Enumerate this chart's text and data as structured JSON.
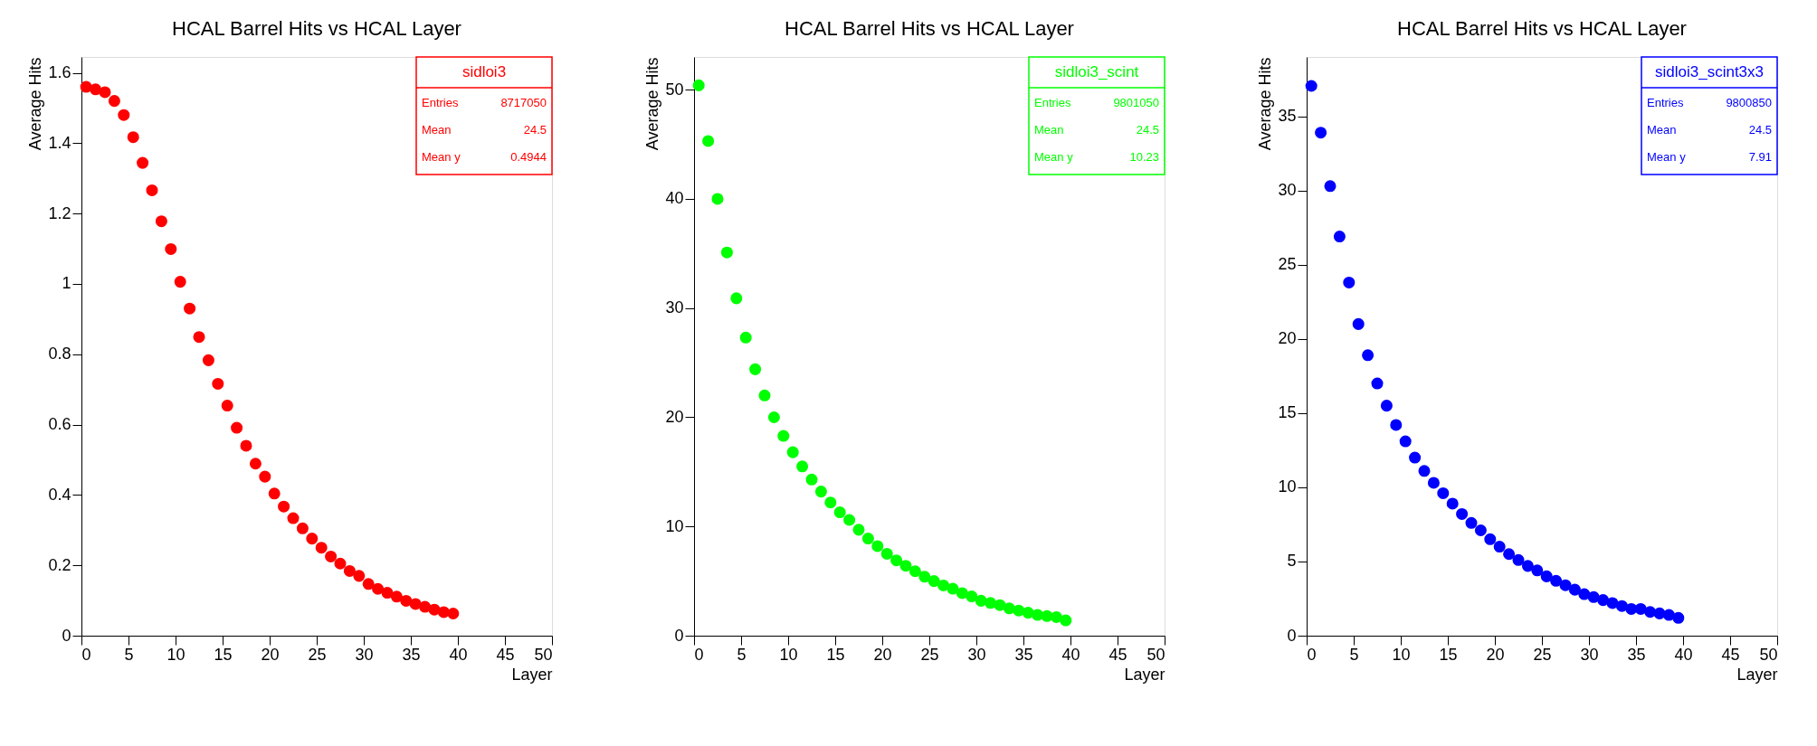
{
  "chart_data": [
    {
      "type": "scatter",
      "title": "HCAL Barrel Hits vs HCAL Layer",
      "xlabel": "Layer",
      "ylabel": "Average Hits",
      "marker": "circle",
      "grid": false,
      "legend": "top right",
      "x": [
        0.5,
        1.5,
        2.5,
        3.5,
        4.5,
        5.5,
        6.5,
        7.5,
        8.5,
        9.5,
        10.5,
        11.5,
        12.5,
        13.5,
        14.5,
        15.5,
        16.5,
        17.5,
        18.5,
        19.5,
        20.5,
        21.5,
        22.5,
        23.5,
        24.5,
        25.5,
        26.5,
        27.5,
        28.5,
        29.5,
        30.5,
        31.5,
        32.5,
        33.5,
        34.5,
        35.5,
        36.5,
        37.5,
        38.5,
        39.5
      ],
      "series": [
        {
          "name": "sidloi3",
          "color": "#ff0000",
          "values": [
            1.56,
            1.553,
            1.545,
            1.52,
            1.48,
            1.417,
            1.344,
            1.266,
            1.178,
            1.099,
            1.006,
            0.93,
            0.849,
            0.783,
            0.716,
            0.654,
            0.591,
            0.54,
            0.489,
            0.452,
            0.404,
            0.367,
            0.334,
            0.305,
            0.276,
            0.25,
            0.225,
            0.205,
            0.184,
            0.17,
            0.147,
            0.133,
            0.122,
            0.111,
            0.099,
            0.09,
            0.082,
            0.074,
            0.067,
            0.063
          ]
        }
      ],
      "annotations": [
        "Entries",
        "8717050",
        "Mean",
        "24.5",
        "Mean y",
        "0.4944"
      ],
      "xlim": [
        0,
        50
      ],
      "xticks": [
        0,
        5,
        10,
        15,
        20,
        25,
        30,
        35,
        40,
        45,
        50
      ],
      "ylim": [
        0,
        1.645
      ],
      "yticks": [
        0,
        0.2,
        0.4,
        0.6,
        0.8,
        1,
        1.2,
        1.4,
        1.6
      ]
    },
    {
      "type": "scatter",
      "title": "HCAL Barrel Hits vs HCAL Layer",
      "xlabel": "Layer",
      "ylabel": "Average Hits",
      "marker": "circle",
      "grid": false,
      "legend": "top right",
      "x": [
        0.5,
        1.5,
        2.5,
        3.5,
        4.5,
        5.5,
        6.5,
        7.5,
        8.5,
        9.5,
        10.5,
        11.5,
        12.5,
        13.5,
        14.5,
        15.5,
        16.5,
        17.5,
        18.5,
        19.5,
        20.5,
        21.5,
        22.5,
        23.5,
        24.5,
        25.5,
        26.5,
        27.5,
        28.5,
        29.5,
        30.5,
        31.5,
        32.5,
        33.5,
        34.5,
        35.5,
        36.5,
        37.5,
        38.5,
        39.5
      ],
      "series": [
        {
          "name": "sidloi3_scint",
          "color": "#00ff00",
          "values": [
            50.4,
            45.3,
            40.0,
            35.1,
            30.9,
            27.3,
            24.4,
            22.0,
            20.0,
            18.3,
            16.8,
            15.5,
            14.3,
            13.2,
            12.2,
            11.3,
            10.6,
            9.7,
            8.9,
            8.2,
            7.5,
            6.9,
            6.4,
            5.9,
            5.4,
            5.0,
            4.6,
            4.3,
            3.9,
            3.6,
            3.2,
            3.0,
            2.8,
            2.5,
            2.3,
            2.1,
            1.9,
            1.8,
            1.7,
            1.4
          ]
        }
      ],
      "annotations": [
        "Entries",
        "9801050",
        "Mean",
        "24.5",
        "Mean y",
        "10.23"
      ],
      "xlim": [
        0,
        50
      ],
      "xticks": [
        0,
        5,
        10,
        15,
        20,
        25,
        30,
        35,
        40,
        45,
        50
      ],
      "ylim": [
        0,
        53
      ],
      "yticks": [
        0,
        10,
        20,
        30,
        40,
        50
      ]
    },
    {
      "type": "scatter",
      "title": "HCAL Barrel Hits vs HCAL Layer",
      "xlabel": "Layer",
      "ylabel": "Average Hits",
      "marker": "circle",
      "grid": false,
      "legend": "top right",
      "x": [
        0.5,
        1.5,
        2.5,
        3.5,
        4.5,
        5.5,
        6.5,
        7.5,
        8.5,
        9.5,
        10.5,
        11.5,
        12.5,
        13.5,
        14.5,
        15.5,
        16.5,
        17.5,
        18.5,
        19.5,
        20.5,
        21.5,
        22.5,
        23.5,
        24.5,
        25.5,
        26.5,
        27.5,
        28.5,
        29.5,
        30.5,
        31.5,
        32.5,
        33.5,
        34.5,
        35.5,
        36.5,
        37.5,
        38.5,
        39.5
      ],
      "series": [
        {
          "name": "sidloi3_scint3x3",
          "color": "#0000ff",
          "values": [
            37.05,
            33.9,
            30.3,
            26.9,
            23.8,
            21.0,
            18.9,
            17.0,
            15.5,
            14.2,
            13.1,
            12.0,
            11.1,
            10.3,
            9.6,
            8.9,
            8.2,
            7.6,
            7.1,
            6.5,
            6.0,
            5.5,
            5.1,
            4.7,
            4.4,
            4.0,
            3.7,
            3.4,
            3.1,
            2.8,
            2.6,
            2.4,
            2.2,
            2.0,
            1.8,
            1.8,
            1.6,
            1.5,
            1.4,
            1.2
          ]
        }
      ],
      "annotations": [
        "Entries",
        "9800850",
        "Mean",
        "24.5",
        "Mean y",
        "7.91"
      ],
      "xlim": [
        0,
        50
      ],
      "xticks": [
        0,
        5,
        10,
        15,
        20,
        25,
        30,
        35,
        40,
        45,
        50
      ],
      "ylim": [
        0,
        39
      ],
      "yticks": [
        0,
        5,
        10,
        15,
        20,
        25,
        30,
        35
      ]
    }
  ]
}
